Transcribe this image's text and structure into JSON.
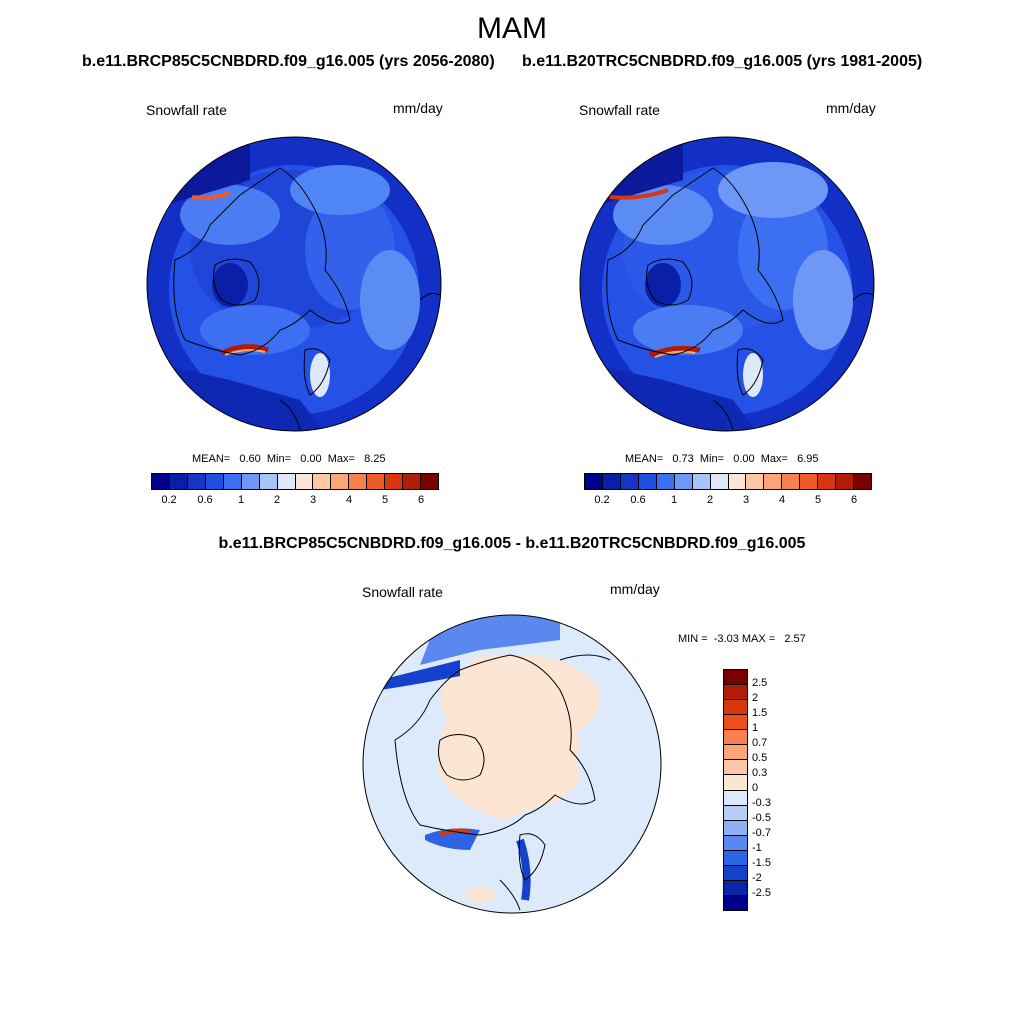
{
  "season": "MAM",
  "panels": [
    {
      "case_title": "b.e11.BRCP85C5CNBDRD.f09_g16.005 (yrs 2056-2080)",
      "variable": "Snowfall rate",
      "units": "mm/day",
      "stats": "MEAN=   0.60  Min=   0.00  Max=   8.25"
    },
    {
      "case_title": "b.e11.B20TRC5CNBDRD.f09_g16.005 (yrs 1981-2005)",
      "variable": "Snowfall rate",
      "units": "mm/day",
      "stats": "MEAN=   0.73  Min=   0.00  Max=   6.95"
    }
  ],
  "diff": {
    "title": "b.e11.BRCP85C5CNBDRD.f09_g16.005 - b.e11.B20TRC5CNBDRD.f09_g16.005",
    "variable": "Snowfall rate",
    "units": "mm/day",
    "minmax": "MIN =  -3.03 MAX =   2.57"
  },
  "colorbar_abs": {
    "colors": [
      "#00008b",
      "#0a1fa8",
      "#1436c2",
      "#1f4fe0",
      "#3a6ff2",
      "#6f97f5",
      "#a6c4f7",
      "#dde9fb",
      "#fde5d3",
      "#fcc7a6",
      "#fca678",
      "#f8804f",
      "#ee5a2a",
      "#d9350f",
      "#b01c06",
      "#7a0000"
    ],
    "tick_labels": [
      "0.2",
      "0.6",
      "1",
      "2",
      "3",
      "4",
      "5",
      "6"
    ]
  },
  "colorbar_diff": {
    "colors": [
      "#7a0000",
      "#b01c06",
      "#d9350f",
      "#f24d1a",
      "#f8804f",
      "#fca678",
      "#fcc7a6",
      "#fde5d3",
      "#ddeafb",
      "#b7cff8",
      "#8fb0f5",
      "#5a88f0",
      "#2f63e6",
      "#1441cc",
      "#0a27a8",
      "#00008b"
    ],
    "tick_labels": [
      "2.5",
      "2",
      "1.5",
      "1",
      "0.7",
      "0.5",
      "0.3",
      "0",
      "-0.3",
      "-0.5",
      "-0.7",
      "-1",
      "-1.5",
      "-2",
      "-2.5"
    ]
  }
}
